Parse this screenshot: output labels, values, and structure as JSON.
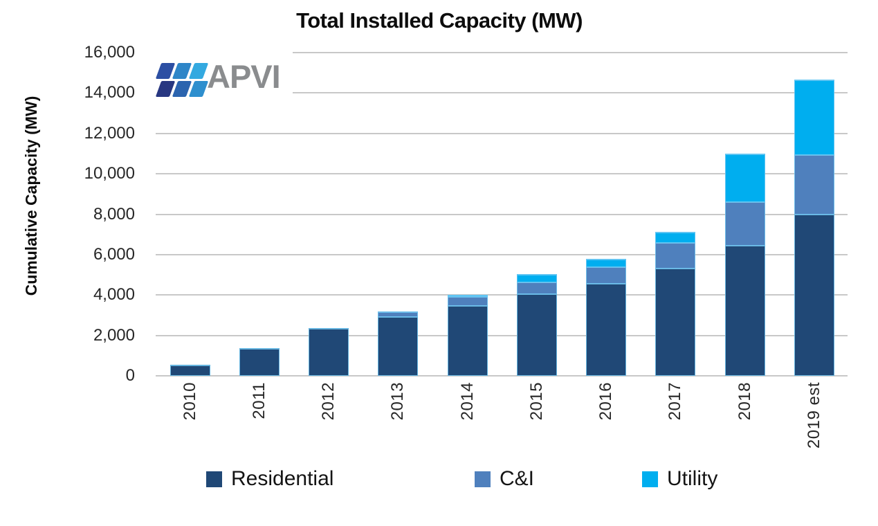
{
  "logo": {
    "text": "APVI",
    "text_color": "#8a8c8e",
    "tile_colors": [
      "#2C4FA3",
      "#2E86C8",
      "#33A9E0",
      "#283781",
      "#2B64AF",
      "#2E8FCE"
    ]
  },
  "chart_data": {
    "type": "bar",
    "stacked": true,
    "title": "Total Installed Capacity (MW)",
    "ylabel": "Cumulative Capacity (MW)",
    "xlabel": "",
    "categories": [
      "2010",
      "2011",
      "2012",
      "2013",
      "2014",
      "2015",
      "2016",
      "2017",
      "2018",
      "2019 est"
    ],
    "series": [
      {
        "name": "Residential",
        "color": "#204876",
        "values": [
          560,
          1360,
          2350,
          2900,
          3470,
          4030,
          4570,
          5300,
          6450,
          7970
        ]
      },
      {
        "name": "C&I",
        "color": "#4F80BD",
        "values": [
          0,
          0,
          0,
          280,
          430,
          590,
          820,
          1290,
          2140,
          2970
        ]
      },
      {
        "name": "Utility",
        "color": "#00AEEF",
        "values": [
          0,
          0,
          0,
          0,
          70,
          400,
          410,
          540,
          2420,
          3710
        ]
      }
    ],
    "totals": [
      560,
      1360,
      2350,
      3180,
      3970,
      5020,
      5800,
      7130,
      11010,
      14650
    ],
    "ylim": [
      0,
      16000
    ],
    "ytick_step": 2000,
    "ytick_labels": [
      "16,000",
      "14,000",
      "12,000",
      "10,000",
      "8,000",
      "6,000",
      "4,000",
      "2,000",
      "0"
    ],
    "grid": true,
    "gridline_color": "#c8c8c8",
    "legend_position": "bottom"
  }
}
